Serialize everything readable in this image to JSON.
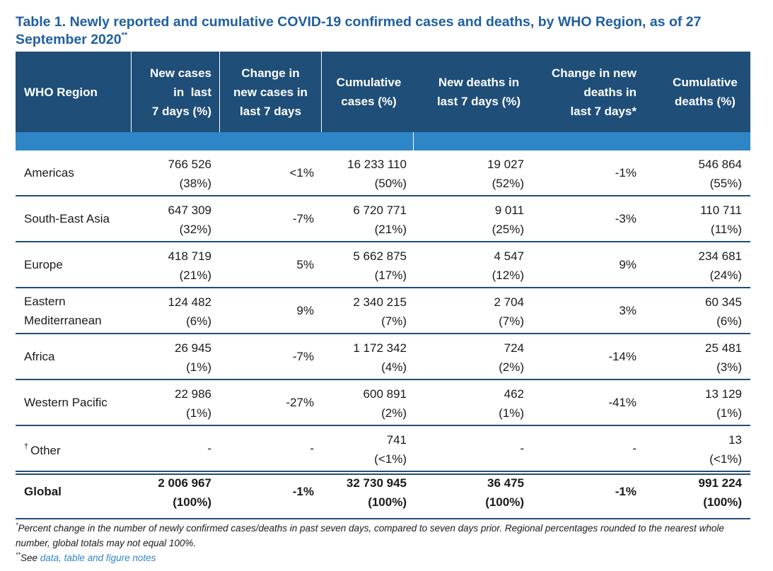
{
  "title": {
    "text": "Table 1. Newly reported and cumulative COVID-19 confirmed cases and deaths, by WHO Region, as of 27 September 2020",
    "superscript": "**"
  },
  "colors": {
    "header_bg": "#1f4e79",
    "band_bg": "#2f86c6",
    "title": "#1f5fa0",
    "link": "#2f86c6"
  },
  "table": {
    "headers": {
      "region": "WHO Region",
      "new_cases": [
        "New cases",
        "in  last",
        "7 days (%)"
      ],
      "change_cases": [
        "Change in",
        "new cases in",
        "last 7 days"
      ],
      "cum_cases": [
        "Cumulative",
        "cases (%)"
      ],
      "new_deaths": [
        "New deaths in",
        "last 7 days (%)"
      ],
      "change_deaths": [
        "Change in new",
        "deaths in",
        "last 7 days*"
      ],
      "cum_deaths": [
        "Cumulative",
        "deaths (%)"
      ]
    },
    "rows": [
      {
        "region": [
          "Americas"
        ],
        "new_cases": [
          "766 526",
          "(38%)"
        ],
        "change_cases": "<1%",
        "cum_cases": [
          "16 233 110",
          "(50%)"
        ],
        "new_deaths": [
          "19 027",
          "(52%)"
        ],
        "change_deaths": "-1%",
        "cum_deaths": [
          "546 864",
          "(55%)"
        ]
      },
      {
        "region": [
          "South-East Asia"
        ],
        "new_cases": [
          "647 309",
          "(32%)"
        ],
        "change_cases": "-7%",
        "cum_cases": [
          "6 720 771",
          "(21%)"
        ],
        "new_deaths": [
          "9 011",
          "(25%)"
        ],
        "change_deaths": "-3%",
        "cum_deaths": [
          "110 711",
          "(11%)"
        ]
      },
      {
        "region": [
          "Europe"
        ],
        "new_cases": [
          "418 719",
          "(21%)"
        ],
        "change_cases": "5%",
        "cum_cases": [
          "5 662 875",
          "(17%)"
        ],
        "new_deaths": [
          "4 547",
          "(12%)"
        ],
        "change_deaths": "9%",
        "cum_deaths": [
          "234 681",
          "(24%)"
        ]
      },
      {
        "region": [
          "Eastern",
          "Mediterranean"
        ],
        "new_cases": [
          "124 482",
          "(6%)"
        ],
        "change_cases": "9%",
        "cum_cases": [
          "2 340 215",
          "(7%)"
        ],
        "new_deaths": [
          "2 704",
          "(7%)"
        ],
        "change_deaths": "3%",
        "cum_deaths": [
          "60 345",
          "(6%)"
        ]
      },
      {
        "region": [
          "Africa"
        ],
        "new_cases": [
          "26 945",
          "(1%)"
        ],
        "change_cases": "-7%",
        "cum_cases": [
          "1 172 342",
          "(4%)"
        ],
        "new_deaths": [
          "724",
          "(2%)"
        ],
        "change_deaths": "-14%",
        "cum_deaths": [
          "25 481",
          "(3%)"
        ]
      },
      {
        "region": [
          "Western Pacific"
        ],
        "new_cases": [
          "22 986",
          "(1%)"
        ],
        "change_cases": "-27%",
        "cum_cases": [
          "600 891",
          "(2%)"
        ],
        "new_deaths": [
          "462",
          "(1%)"
        ],
        "change_deaths": "-41%",
        "cum_deaths": [
          "13 129",
          "(1%)"
        ]
      },
      {
        "region": [
          "Other"
        ],
        "region_mark": "†",
        "new_cases": [
          "-",
          ""
        ],
        "change_cases": "-",
        "cum_cases": [
          "741",
          "(<1%)"
        ],
        "new_deaths": [
          "-",
          ""
        ],
        "change_deaths": "-",
        "cum_deaths": [
          "13",
          "(<1%)"
        ]
      }
    ],
    "global": {
      "region": [
        "Global"
      ],
      "new_cases": [
        "2 006 967",
        "(100%)"
      ],
      "change_cases": "-1%",
      "cum_cases": [
        "32 730 945",
        "(100%)"
      ],
      "new_deaths": [
        "36 475",
        "(100%)"
      ],
      "change_deaths": "-1%",
      "cum_deaths": [
        "991 224",
        "(100%)"
      ]
    }
  },
  "notes": {
    "line1_mark": "*",
    "line1": "Percent change in the number of newly confirmed cases/deaths in past seven days, compared to seven days prior. Regional percentages rounded to the nearest whole number, global totals may not equal 100%.",
    "line2_mark": "**",
    "line2_prefix": "See ",
    "line2_link": "data, table and figure notes"
  }
}
